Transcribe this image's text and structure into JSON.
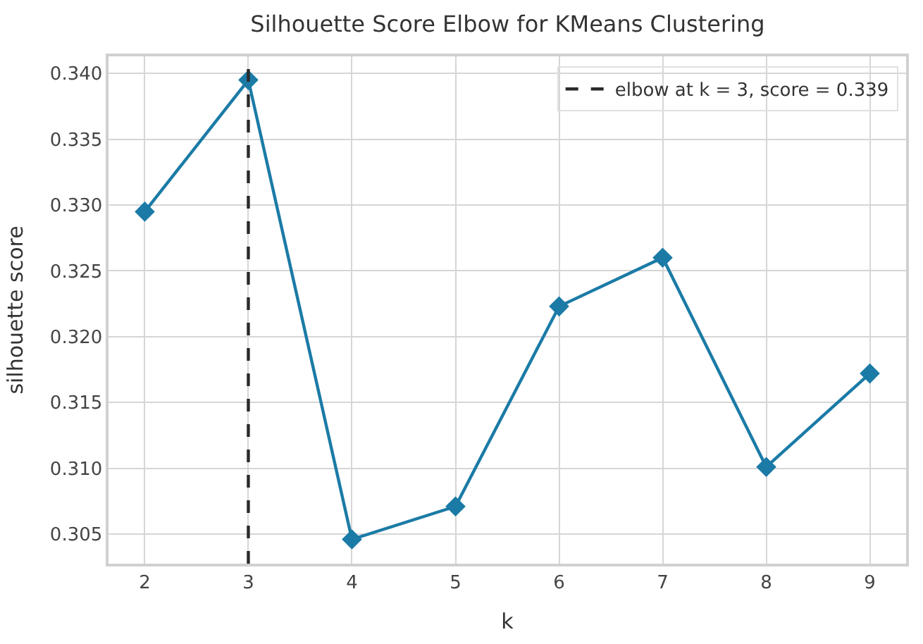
{
  "chart_data": {
    "type": "line",
    "title": "Silhouette Score Elbow for KMeans Clustering",
    "xlabel": "k",
    "ylabel": "silhouette score",
    "x": [
      2,
      3,
      4,
      5,
      6,
      7,
      8,
      9
    ],
    "series": [
      {
        "color": "#1b7ba6",
        "values": [
          0.3295,
          0.3395,
          0.3046,
          0.3071,
          0.3223,
          0.326,
          0.3101,
          0.3172
        ]
      }
    ],
    "xlim": [
      1.65,
      9.35
    ],
    "xticks": [
      2,
      3,
      4,
      5,
      6,
      7,
      8,
      9
    ],
    "ylim": [
      0.30275,
      0.3413
    ],
    "yticks": [
      {
        "value": 0.305,
        "label": "0.305"
      },
      {
        "value": 0.31,
        "label": "0.310"
      },
      {
        "value": 0.315,
        "label": "0.315"
      },
      {
        "value": 0.32,
        "label": "0.320"
      },
      {
        "value": 0.325,
        "label": "0.325"
      },
      {
        "value": 0.33,
        "label": "0.330"
      },
      {
        "value": 0.335,
        "label": "0.335"
      },
      {
        "value": 0.34,
        "label": "0.340"
      }
    ],
    "ref_lines": [
      {
        "axis": "x",
        "value": 3,
        "label": "elbow at k = 3, score = 0.339",
        "color": "#2a2a2a",
        "line_style": "dashed"
      }
    ],
    "grid": true,
    "legend": "top right",
    "marker": "diamond",
    "line_style": "solid"
  }
}
